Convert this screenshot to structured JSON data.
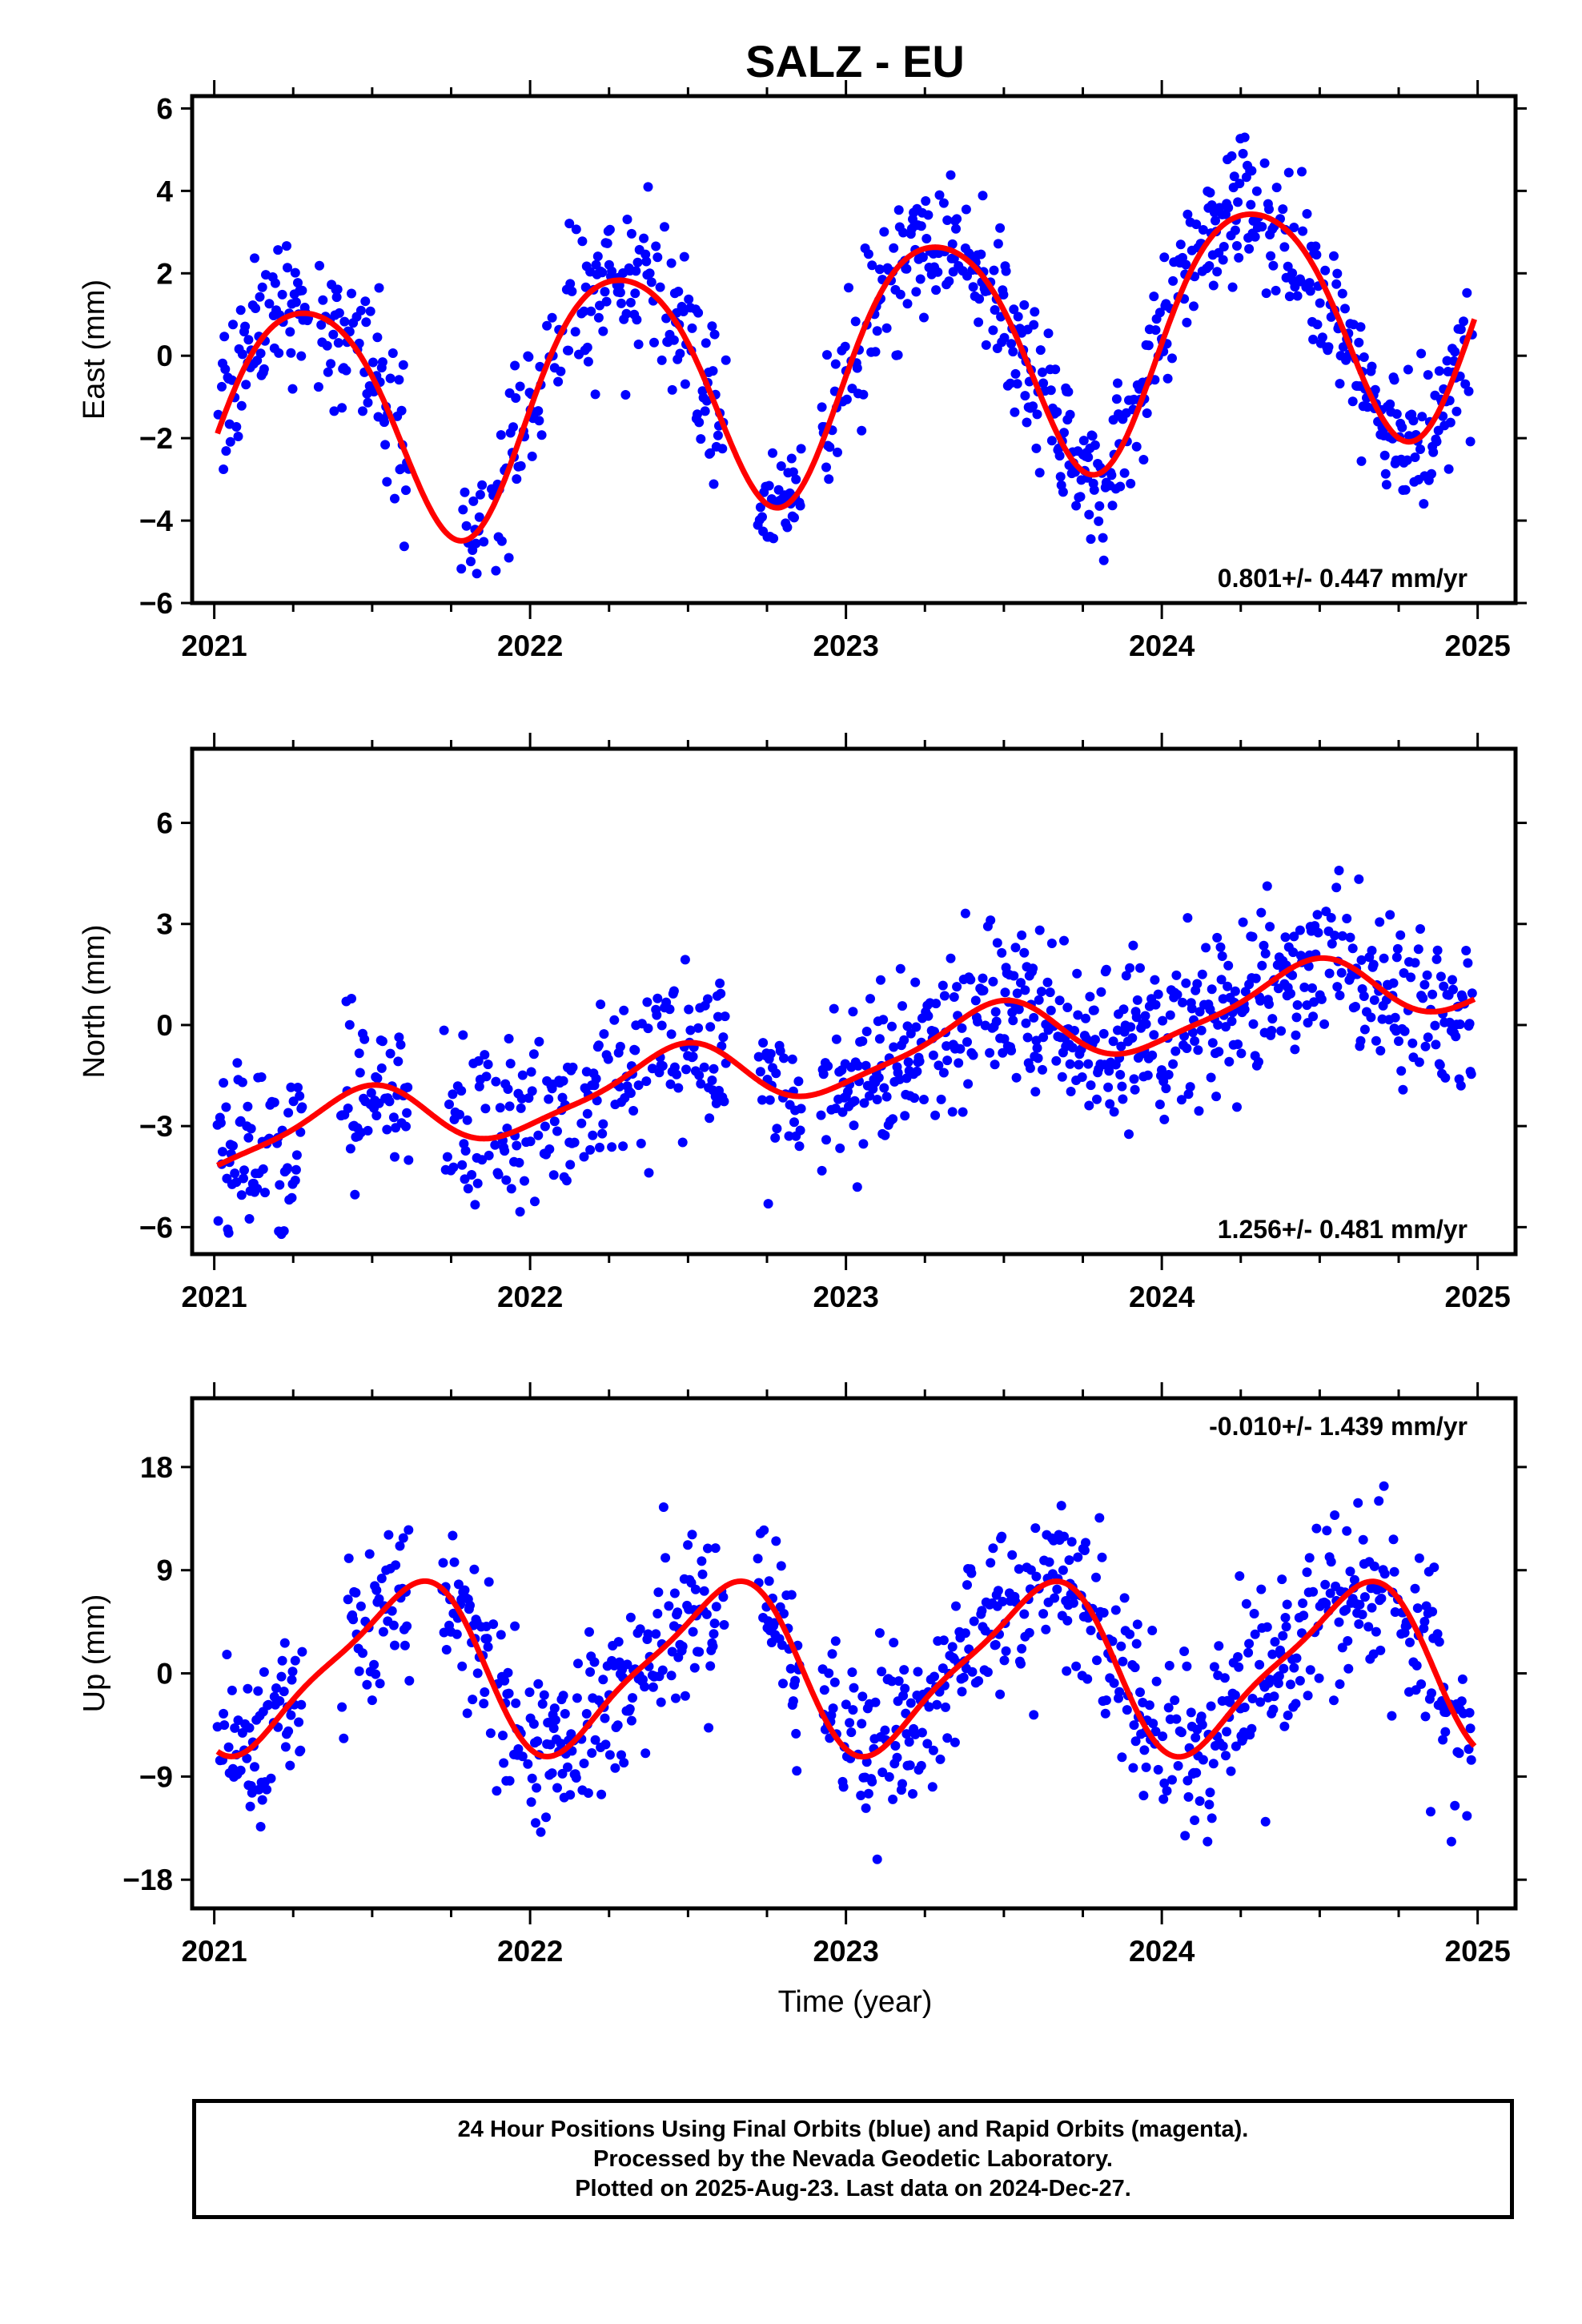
{
  "figure": {
    "title": "SALZ - EU",
    "xlabel": "Time (year)"
  },
  "footer": {
    "line1": "24 Hour Positions Using Final Orbits (blue) and Rapid Orbits (magenta).",
    "line2": "Processed by the Nevada Geodetic Laboratory.",
    "line3": "Plotted on 2025-Aug-23. Last data on 2024-Dec-27."
  },
  "colors": {
    "data": "#0000ff",
    "model": "#ff0000",
    "axis": "#000000"
  },
  "chart_data": [
    {
      "type": "scatter",
      "ylabel": "East (mm)",
      "xlim": [
        2020.93,
        2025.12
      ],
      "ylim": [
        -6,
        6.3
      ],
      "x_ticks": [
        2021,
        2022,
        2023,
        2024,
        2025
      ],
      "y_ticks": [
        -6,
        -4,
        -2,
        0,
        2,
        4,
        6
      ],
      "y_tick_labels": [
        "−6",
        "−4",
        "−2",
        "0",
        "2",
        "4",
        "6"
      ],
      "rate_label": "0.801+/- 0.447 mm/yr",
      "rate_position": "bottom-right",
      "model": {
        "offset": -0.2,
        "rate": 0.801,
        "annual_cos": -0.6,
        "annual_sin": 2.9,
        "semi_cos": 0.3,
        "semi_sin": 0.2
      },
      "scatter_sd": 0.9,
      "data_gaps": [
        [
          2021.3,
          2021.33
        ],
        [
          2021.62,
          2021.78
        ],
        [
          2022.62,
          2022.72
        ],
        [
          2022.86,
          2022.92
        ]
      ],
      "series": [
        {
          "name": "Final orbits",
          "color": "#0000ff",
          "marker": "dot"
        },
        {
          "name": "Model fit",
          "color": "#ff0000",
          "marker": "line"
        }
      ]
    },
    {
      "type": "scatter",
      "ylabel": "North (mm)",
      "xlim": [
        2020.93,
        2025.12
      ],
      "ylim": [
        -6.8,
        8.2
      ],
      "x_ticks": [
        2021,
        2022,
        2023,
        2024,
        2025
      ],
      "y_ticks": [
        -6,
        -3,
        0,
        3,
        6
      ],
      "y_tick_labels": [
        "−6",
        "−3",
        "0",
        "3",
        "6"
      ],
      "rate_label": "1.256+/- 0.481 mm/yr",
      "rate_position": "bottom-right",
      "model": {
        "offset": -1.0,
        "rate": 1.256,
        "annual_cos": -0.9,
        "annual_sin": 0.3,
        "semi_cos": 0.2,
        "semi_sin": 0.1
      },
      "scatter_sd": 1.2,
      "data_gaps": [
        [
          2021.28,
          2021.4
        ],
        [
          2021.62,
          2021.72
        ],
        [
          2022.62,
          2022.72
        ],
        [
          2022.86,
          2022.92
        ]
      ],
      "series": [
        {
          "name": "Final orbits",
          "color": "#0000ff",
          "marker": "dot"
        },
        {
          "name": "Model fit",
          "color": "#ff0000",
          "marker": "line"
        }
      ]
    },
    {
      "type": "scatter",
      "ylabel": "Up (mm)",
      "xlim": [
        2020.93,
        2025.12
      ],
      "ylim": [
        -20.5,
        24
      ],
      "x_ticks": [
        2021,
        2022,
        2023,
        2024,
        2025
      ],
      "y_ticks": [
        -18,
        -9,
        0,
        9,
        18
      ],
      "y_tick_labels": [
        "−18",
        "−9",
        "0",
        "9",
        "18"
      ],
      "rate_label": "-0.010+/- 1.439 mm/yr",
      "rate_position": "top-right",
      "model": {
        "offset": 0.5,
        "rate": -0.01,
        "annual_cos": -5.5,
        "annual_sin": -4.4,
        "semi_cos": -1.6,
        "semi_sin": 0.2
      },
      "scatter_sd": 3.8,
      "data_gaps": [
        [
          2021.28,
          2021.4
        ],
        [
          2021.62,
          2021.72
        ],
        [
          2022.62,
          2022.72
        ],
        [
          2022.86,
          2022.92
        ]
      ],
      "series": [
        {
          "name": "Final orbits",
          "color": "#0000ff",
          "marker": "dot"
        },
        {
          "name": "Model fit",
          "color": "#ff0000",
          "marker": "line"
        }
      ]
    }
  ]
}
